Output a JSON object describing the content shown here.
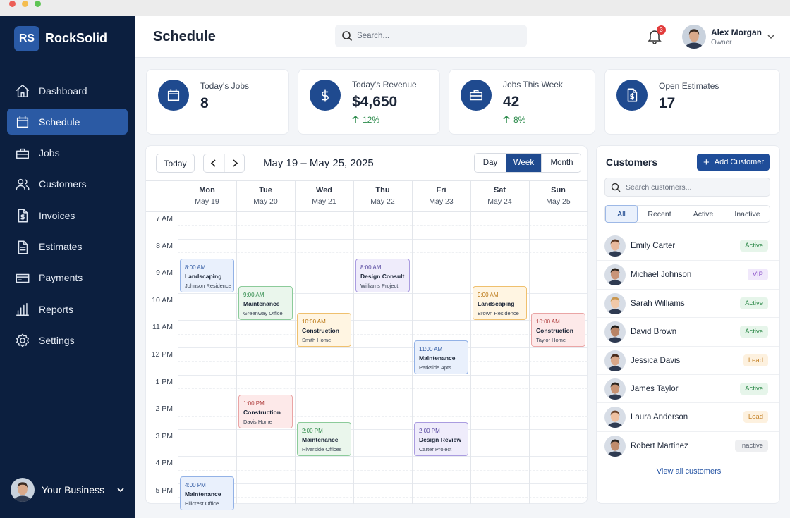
{
  "app": {
    "logo": "RS",
    "name": "RockSolid"
  },
  "nav": {
    "items": [
      {
        "label": "Dashboard"
      },
      {
        "label": "Schedule",
        "active": true
      },
      {
        "label": "Jobs"
      },
      {
        "label": "Customers"
      },
      {
        "label": "Invoices"
      },
      {
        "label": "Estimates"
      },
      {
        "label": "Payments"
      },
      {
        "label": "Reports"
      },
      {
        "label": "Settings"
      }
    ]
  },
  "sidebar_footer": {
    "label": "Your Business"
  },
  "header": {
    "title": "Schedule",
    "search_placeholder": "Search...",
    "notifications": "3",
    "user": {
      "name": "Alex Morgan",
      "role": "Owner"
    }
  },
  "stats": [
    {
      "label": "Today's Jobs",
      "value": "8"
    },
    {
      "label": "Today's Revenue",
      "value": "$4,650",
      "change": "12%"
    },
    {
      "label": "Jobs This Week",
      "value": "42",
      "change": "8%"
    },
    {
      "label": "Open Estimates",
      "value": "17"
    }
  ],
  "calendar": {
    "today": "Today",
    "range": "May 19 – May 25, 2025",
    "views": [
      {
        "label": "Day"
      },
      {
        "label": "Week",
        "active": true
      },
      {
        "label": "Month"
      }
    ],
    "times": [
      "7 AM",
      "8 AM",
      "9 AM",
      "10 AM",
      "11 AM",
      "12 PM",
      "1 PM",
      "2 PM",
      "3 PM",
      "4 PM",
      "5 PM"
    ],
    "days": [
      {
        "name": "Mon",
        "date": "May 19",
        "events": [
          {
            "time": "8:00 AM",
            "title": "Landscaping",
            "location": "Johnson Residence",
            "color": "blue"
          },
          {
            "time": "4:00 PM",
            "title": "Maintenance",
            "location": "Hillcrest Office",
            "color": "blue"
          }
        ]
      },
      {
        "name": "Tue",
        "date": "May 20",
        "events": [
          {
            "time": "9:00 AM",
            "title": "Maintenance",
            "location": "Greenway Office",
            "color": "green"
          },
          {
            "time": "1:00 PM",
            "title": "Construction",
            "location": "Davis Home",
            "color": "red"
          }
        ]
      },
      {
        "name": "Wed",
        "date": "May 21",
        "events": [
          {
            "time": "10:00 AM",
            "title": "Construction",
            "location": "Smith Home",
            "color": "orange"
          },
          {
            "time": "2:00 PM",
            "title": "Maintenance",
            "location": "Riverside Offices",
            "color": "green"
          }
        ]
      },
      {
        "name": "Thu",
        "date": "May 22",
        "events": [
          {
            "time": "8:00 AM",
            "title": "Design Consult",
            "location": "Williams Project",
            "color": "purple"
          }
        ]
      },
      {
        "name": "Fri",
        "date": "May 23",
        "events": [
          {
            "time": "11:00 AM",
            "title": "Maintenance",
            "location": "Parkside Apts",
            "color": "blue"
          },
          {
            "time": "2:00 PM",
            "title": "Design Review",
            "location": "Carter Project",
            "color": "purple"
          }
        ]
      },
      {
        "name": "Sat",
        "date": "May 24",
        "events": [
          {
            "time": "9:00 AM",
            "title": "Landscaping",
            "location": "Brown Residence",
            "color": "orange"
          }
        ]
      },
      {
        "name": "Sun",
        "date": "May 25",
        "events": [
          {
            "time": "10:00 AM",
            "title": "Construction",
            "location": "Taylor Home",
            "color": "red"
          }
        ]
      }
    ]
  },
  "customers": {
    "title": "Customers",
    "add_button": "Add Customer",
    "search_placeholder": "Search customers...",
    "tabs": [
      {
        "label": "All",
        "active": true
      },
      {
        "label": "Recent"
      },
      {
        "label": "Active"
      },
      {
        "label": "Inactive"
      }
    ],
    "list": [
      {
        "name": "Emily Carter",
        "status": "Active"
      },
      {
        "name": "Michael Johnson",
        "status": "VIP"
      },
      {
        "name": "Sarah Williams",
        "status": "Active"
      },
      {
        "name": "David Brown",
        "status": "Active"
      },
      {
        "name": "Jessica Davis",
        "status": "Lead"
      },
      {
        "name": "James Taylor",
        "status": "Active"
      },
      {
        "name": "Laura Anderson",
        "status": "Lead"
      },
      {
        "name": "Robert Martinez",
        "status": "Inactive"
      }
    ],
    "view_all": "View all customers"
  }
}
